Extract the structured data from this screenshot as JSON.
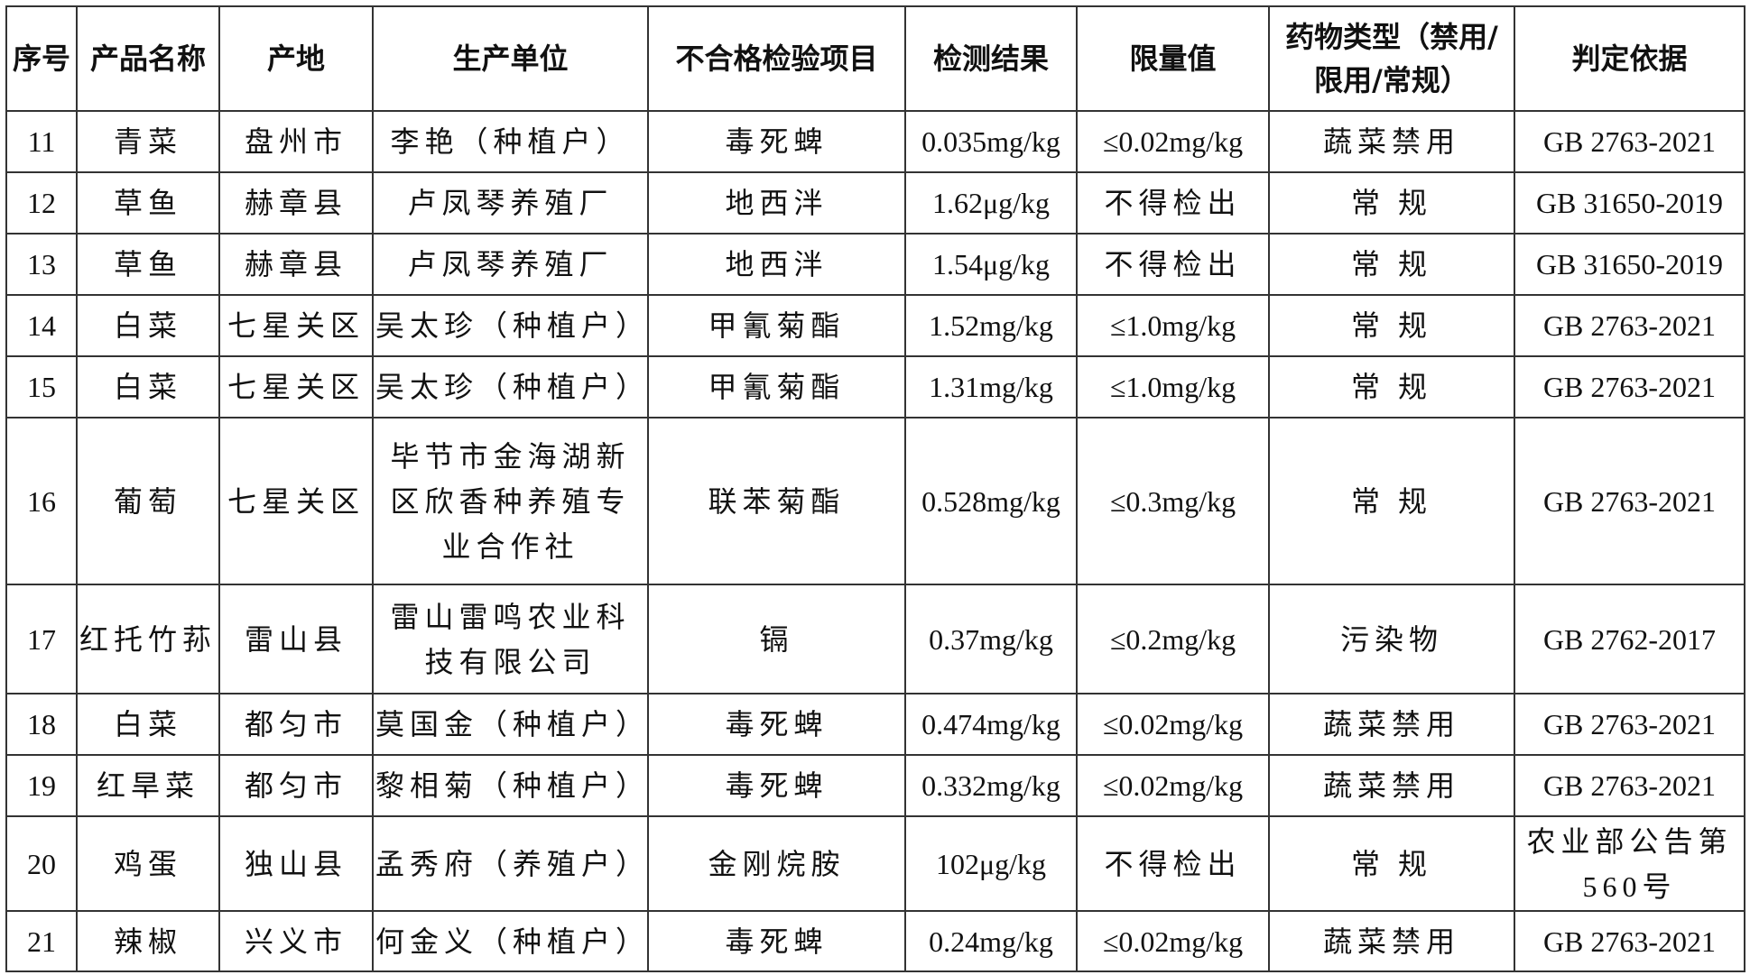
{
  "table": {
    "headers": [
      "序号",
      "产品名称",
      "产地",
      "生产单位",
      "不合格检验项目",
      "检测结果",
      "限量值",
      "药物类型（禁用/限用/常规）",
      "判定依据"
    ],
    "rows": [
      [
        "11",
        "青菜",
        "盘州市",
        "李艳（种植户）",
        "毒死蜱",
        "0.035mg/kg",
        "≤0.02mg/kg",
        "蔬菜禁用",
        "GB 2763-2021"
      ],
      [
        "12",
        "草鱼",
        "赫章县",
        "卢凤琴养殖厂",
        "地西泮",
        "1.62μg/kg",
        "不得检出",
        "常 规",
        "GB 31650-2019"
      ],
      [
        "13",
        "草鱼",
        "赫章县",
        "卢凤琴养殖厂",
        "地西泮",
        "1.54μg/kg",
        "不得检出",
        "常 规",
        "GB 31650-2019"
      ],
      [
        "14",
        "白菜",
        "七星关区",
        "吴太珍（种植户）",
        "甲氰菊酯",
        "1.52mg/kg",
        "≤1.0mg/kg",
        "常 规",
        "GB 2763-2021"
      ],
      [
        "15",
        "白菜",
        "七星关区",
        "吴太珍（种植户）",
        "甲氰菊酯",
        "1.31mg/kg",
        "≤1.0mg/kg",
        "常 规",
        "GB 2763-2021"
      ],
      [
        "16",
        "葡萄",
        "七星关区",
        "毕节市金海湖新区欣香种养殖专业合作社",
        "联苯菊酯",
        "0.528mg/kg",
        "≤0.3mg/kg",
        "常 规",
        "GB 2763-2021"
      ],
      [
        "17",
        "红托竹荪",
        "雷山县",
        "雷山雷鸣农业科技有限公司",
        "镉",
        "0.37mg/kg",
        "≤0.2mg/kg",
        "污染物",
        "GB 2762-2017"
      ],
      [
        "18",
        "白菜",
        "都匀市",
        "莫国金（种植户）",
        "毒死蜱",
        "0.474mg/kg",
        "≤0.02mg/kg",
        "蔬菜禁用",
        "GB 2763-2021"
      ],
      [
        "19",
        "红旱菜",
        "都匀市",
        "黎相菊（种植户）",
        "毒死蜱",
        "0.332mg/kg",
        "≤0.02mg/kg",
        "蔬菜禁用",
        "GB 2763-2021"
      ],
      [
        "20",
        "鸡蛋",
        "独山县",
        "孟秀府（养殖户）",
        "金刚烷胺",
        "102μg/kg",
        "不得检出",
        "常 规",
        "农业部公告第560号"
      ],
      [
        "21",
        "辣椒",
        "兴义市",
        "何金义（种植户）",
        "毒死蜱",
        "0.24mg/kg",
        "≤0.02mg/kg",
        "蔬菜禁用",
        "GB 2763-2021"
      ]
    ]
  }
}
